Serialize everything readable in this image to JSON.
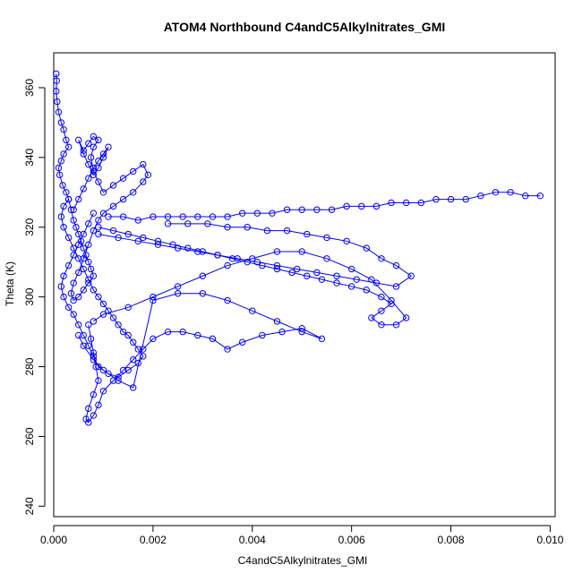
{
  "chart_data": {
    "type": "scatter",
    "title": "ATOM4 Northbound C4andC5Alkylnitrates_GMI",
    "xlabel": "C4andC5Alkylnitrates_GMI",
    "ylabel": "Theta (K)",
    "xlim": [
      0.0,
      0.0101
    ],
    "ylim": [
      237,
      370
    ],
    "xticks": [
      0.0,
      0.002,
      0.004,
      0.006,
      0.008,
      0.01
    ],
    "xtick_labels": [
      "0.000",
      "0.002",
      "0.004",
      "0.006",
      "0.008",
      "0.010"
    ],
    "yticks": [
      240,
      260,
      280,
      300,
      320,
      340,
      360
    ],
    "ytick_labels": [
      "240",
      "260",
      "280",
      "300",
      "320",
      "340",
      "360"
    ],
    "grid": false,
    "legend": "none",
    "marker": "open-circle",
    "connected": true,
    "color": "#0000ff",
    "series": [
      {
        "points": [
          [
            5e-05,
            364
          ],
          [
            6e-05,
            362
          ],
          [
            5e-05,
            359
          ],
          [
            7e-05,
            356
          ],
          [
            0.0001,
            353
          ],
          [
            0.00015,
            350
          ],
          [
            0.0002,
            348
          ],
          [
            0.00025,
            345
          ],
          [
            0.0003,
            343
          ],
          [
            0.0002,
            341
          ],
          [
            0.00015,
            339
          ],
          [
            0.0001,
            337
          ],
          [
            0.00012,
            335
          ],
          [
            0.00018,
            332
          ],
          [
            0.00025,
            330
          ],
          [
            0.0003,
            328
          ],
          [
            0.00035,
            325
          ],
          [
            0.0004,
            322
          ],
          [
            0.00045,
            320
          ],
          [
            0.0005,
            318
          ],
          [
            0.00055,
            316
          ],
          [
            0.0006,
            314
          ],
          [
            0.00065,
            312
          ],
          [
            0.0007,
            310
          ],
          [
            0.00075,
            308
          ],
          [
            0.0008,
            306
          ],
          [
            0.0007,
            304
          ],
          [
            0.0006,
            302
          ],
          [
            0.0005,
            300
          ],
          [
            0.0004,
            299
          ],
          [
            0.00035,
            301
          ],
          [
            0.0004,
            304
          ],
          [
            0.0005,
            307
          ],
          [
            0.0006,
            311
          ],
          [
            0.0007,
            315
          ],
          [
            0.0008,
            319
          ],
          [
            0.0009,
            322
          ],
          [
            0.001,
            324
          ],
          [
            0.0012,
            326
          ],
          [
            0.0014,
            328
          ],
          [
            0.0016,
            330
          ],
          [
            0.0018,
            333
          ],
          [
            0.0019,
            335
          ],
          [
            0.0018,
            338
          ],
          [
            0.0016,
            336
          ],
          [
            0.0014,
            334
          ],
          [
            0.0012,
            332
          ],
          [
            0.001,
            330
          ],
          [
            0.0009,
            333
          ],
          [
            0.0008,
            336
          ],
          [
            0.00075,
            340
          ],
          [
            0.0008,
            343
          ],
          [
            0.0009,
            345
          ],
          [
            0.0008,
            346
          ],
          [
            0.0007,
            344
          ],
          [
            0.0006,
            342
          ],
          [
            0.0005,
            345
          ],
          [
            0.0006,
            341
          ],
          [
            0.0007,
            338
          ],
          [
            0.0008,
            335
          ],
          [
            0.0009,
            337
          ],
          [
            0.001,
            340
          ],
          [
            0.0011,
            343
          ],
          [
            0.001,
            341
          ],
          [
            0.0009,
            339
          ],
          [
            0.0008,
            337
          ],
          [
            0.0007,
            334
          ],
          [
            0.0006,
            331
          ],
          [
            0.0005,
            328
          ],
          [
            0.0004,
            325
          ]
        ]
      },
      {
        "points": [
          [
            0.0011,
            323
          ],
          [
            0.0014,
            323
          ],
          [
            0.0017,
            322
          ],
          [
            0.002,
            323
          ],
          [
            0.0023,
            323
          ],
          [
            0.0026,
            323
          ],
          [
            0.0029,
            323
          ],
          [
            0.0032,
            323
          ],
          [
            0.0035,
            323
          ],
          [
            0.0038,
            324
          ],
          [
            0.0041,
            324
          ],
          [
            0.0044,
            324
          ],
          [
            0.0047,
            325
          ],
          [
            0.005,
            325
          ],
          [
            0.0053,
            325
          ],
          [
            0.0056,
            325
          ],
          [
            0.0059,
            326
          ],
          [
            0.0062,
            326
          ],
          [
            0.0065,
            326
          ],
          [
            0.0068,
            327
          ],
          [
            0.0071,
            327
          ],
          [
            0.0074,
            327
          ],
          [
            0.0077,
            328
          ],
          [
            0.008,
            328
          ],
          [
            0.0083,
            328
          ],
          [
            0.0086,
            329
          ],
          [
            0.0089,
            330
          ],
          [
            0.0092,
            330
          ],
          [
            0.0095,
            329
          ],
          [
            0.0098,
            329
          ]
        ]
      },
      {
        "points": [
          [
            0.0009,
            320
          ],
          [
            0.0012,
            319
          ],
          [
            0.0015,
            318
          ],
          [
            0.0018,
            317
          ],
          [
            0.0021,
            316
          ],
          [
            0.0024,
            315
          ],
          [
            0.0027,
            314
          ],
          [
            0.003,
            313
          ],
          [
            0.0033,
            312
          ],
          [
            0.0036,
            311
          ],
          [
            0.0039,
            310
          ],
          [
            0.0042,
            309
          ],
          [
            0.0045,
            308
          ],
          [
            0.0048,
            307
          ],
          [
            0.0051,
            306
          ],
          [
            0.0054,
            305
          ],
          [
            0.0057,
            304
          ],
          [
            0.006,
            303
          ],
          [
            0.0063,
            302
          ],
          [
            0.0066,
            300
          ],
          [
            0.0068,
            298
          ],
          [
            0.0066,
            296
          ],
          [
            0.0064,
            294
          ],
          [
            0.0066,
            292
          ],
          [
            0.0069,
            292
          ],
          [
            0.0071,
            294
          ],
          [
            0.0068,
            299
          ],
          [
            0.0064,
            305
          ],
          [
            0.006,
            308
          ],
          [
            0.0055,
            311
          ],
          [
            0.005,
            313
          ],
          [
            0.0045,
            313
          ],
          [
            0.004,
            311
          ],
          [
            0.0035,
            309
          ],
          [
            0.003,
            306
          ],
          [
            0.0025,
            303
          ],
          [
            0.002,
            300
          ],
          [
            0.0015,
            297
          ],
          [
            0.001,
            295
          ],
          [
            0.0008,
            293
          ]
        ]
      },
      {
        "points": [
          [
            0.0007,
            292
          ],
          [
            0.00075,
            288
          ],
          [
            0.0008,
            284
          ],
          [
            0.00085,
            280
          ],
          [
            0.0009,
            276
          ],
          [
            0.0008,
            272
          ],
          [
            0.0007,
            268
          ],
          [
            0.00065,
            265
          ],
          [
            0.0007,
            264
          ],
          [
            0.0008,
            266
          ],
          [
            0.0009,
            269
          ],
          [
            0.001,
            273
          ],
          [
            0.0012,
            276
          ],
          [
            0.0014,
            279
          ],
          [
            0.0016,
            282
          ],
          [
            0.0018,
            285
          ],
          [
            0.002,
            288
          ],
          [
            0.0023,
            290
          ],
          [
            0.0026,
            290
          ],
          [
            0.0029,
            289
          ],
          [
            0.0032,
            288
          ],
          [
            0.0035,
            285
          ],
          [
            0.0038,
            287
          ],
          [
            0.0042,
            289
          ],
          [
            0.0046,
            290
          ],
          [
            0.005,
            291
          ],
          [
            0.0054,
            288
          ],
          [
            0.005,
            290
          ],
          [
            0.0045,
            293
          ],
          [
            0.004,
            296
          ],
          [
            0.0035,
            299
          ],
          [
            0.003,
            301
          ],
          [
            0.0025,
            301
          ],
          [
            0.002,
            299
          ],
          [
            0.0016,
            274
          ],
          [
            0.0013,
            276
          ],
          [
            0.001,
            279
          ],
          [
            0.0008,
            282
          ],
          [
            0.0006,
            286
          ],
          [
            0.0005,
            289
          ]
        ]
      },
      {
        "points": [
          [
            0.0003,
            328
          ],
          [
            0.0002,
            326
          ],
          [
            0.00015,
            323
          ],
          [
            0.0002,
            320
          ],
          [
            0.0003,
            317
          ],
          [
            0.0004,
            314
          ],
          [
            0.0005,
            311
          ],
          [
            0.0006,
            308
          ],
          [
            0.0007,
            305
          ],
          [
            0.0008,
            302
          ],
          [
            0.0009,
            300
          ],
          [
            0.001,
            298
          ],
          [
            0.0011,
            296
          ],
          [
            0.0012,
            294
          ],
          [
            0.0013,
            292
          ],
          [
            0.0014,
            290
          ],
          [
            0.0015,
            289
          ],
          [
            0.0016,
            287
          ],
          [
            0.0017,
            285
          ],
          [
            0.0018,
            283
          ],
          [
            0.0017,
            281
          ],
          [
            0.0015,
            279
          ],
          [
            0.0013,
            277
          ],
          [
            0.0011,
            278
          ],
          [
            0.0009,
            280
          ],
          [
            0.0008,
            283
          ],
          [
            0.0007,
            286
          ],
          [
            0.0006,
            289
          ],
          [
            0.0005,
            292
          ],
          [
            0.0004,
            295
          ],
          [
            0.0003,
            297
          ],
          [
            0.0002,
            300
          ],
          [
            0.00015,
            303
          ],
          [
            0.0002,
            306
          ],
          [
            0.0003,
            309
          ],
          [
            0.0004,
            312
          ],
          [
            0.0005,
            315
          ],
          [
            0.0006,
            318
          ],
          [
            0.0007,
            321
          ],
          [
            0.0008,
            324
          ]
        ]
      },
      {
        "points": [
          [
            0.0009,
            318
          ],
          [
            0.0013,
            317
          ],
          [
            0.0017,
            316
          ],
          [
            0.0021,
            315
          ],
          [
            0.0025,
            314
          ],
          [
            0.0029,
            313
          ],
          [
            0.0033,
            312
          ],
          [
            0.0037,
            311
          ],
          [
            0.0041,
            310
          ],
          [
            0.0045,
            309
          ],
          [
            0.0049,
            308
          ],
          [
            0.0053,
            307
          ],
          [
            0.0057,
            306
          ],
          [
            0.0061,
            305
          ],
          [
            0.0065,
            304
          ],
          [
            0.0069,
            303
          ],
          [
            0.0072,
            306
          ],
          [
            0.0069,
            309
          ],
          [
            0.0066,
            311
          ],
          [
            0.0063,
            314
          ],
          [
            0.0059,
            316
          ],
          [
            0.0055,
            317
          ],
          [
            0.0051,
            318
          ],
          [
            0.0047,
            319
          ],
          [
            0.0043,
            319
          ],
          [
            0.0039,
            320
          ],
          [
            0.0035,
            320
          ],
          [
            0.0031,
            321
          ],
          [
            0.0027,
            321
          ],
          [
            0.0023,
            321
          ]
        ]
      }
    ]
  }
}
